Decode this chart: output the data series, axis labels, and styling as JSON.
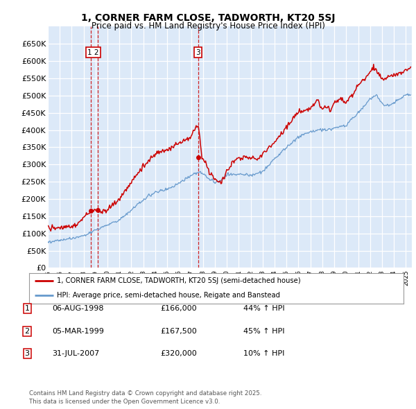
{
  "title": "1, CORNER FARM CLOSE, TADWORTH, KT20 5SJ",
  "subtitle": "Price paid vs. HM Land Registry's House Price Index (HPI)",
  "bg_color": "#dce9f8",
  "red_color": "#cc0000",
  "blue_color": "#6699cc",
  "grid_color": "#ffffff",
  "legend_entries": [
    "1, CORNER FARM CLOSE, TADWORTH, KT20 5SJ (semi-detached house)",
    "HPI: Average price, semi-detached house, Reigate and Banstead"
  ],
  "table_rows": [
    [
      "1",
      "06-AUG-1998",
      "£166,000",
      "44% ↑ HPI"
    ],
    [
      "2",
      "05-MAR-1999",
      "£167,500",
      "45% ↑ HPI"
    ],
    [
      "3",
      "31-JUL-2007",
      "£320,000",
      "10% ↑ HPI"
    ]
  ],
  "footnote": "Contains HM Land Registry data © Crown copyright and database right 2025.\nThis data is licensed under the Open Government Licence v3.0.",
  "ylim": [
    0,
    700000
  ],
  "ytick_vals": [
    0,
    50000,
    100000,
    150000,
    200000,
    250000,
    300000,
    350000,
    400000,
    450000,
    500000,
    550000,
    600000,
    650000
  ],
  "xlim_start": 1995.0,
  "xlim_end": 2025.5,
  "sale_dates": [
    1998.59,
    1999.17,
    2007.58
  ],
  "sale_prices": [
    166000,
    167500,
    320000
  ]
}
